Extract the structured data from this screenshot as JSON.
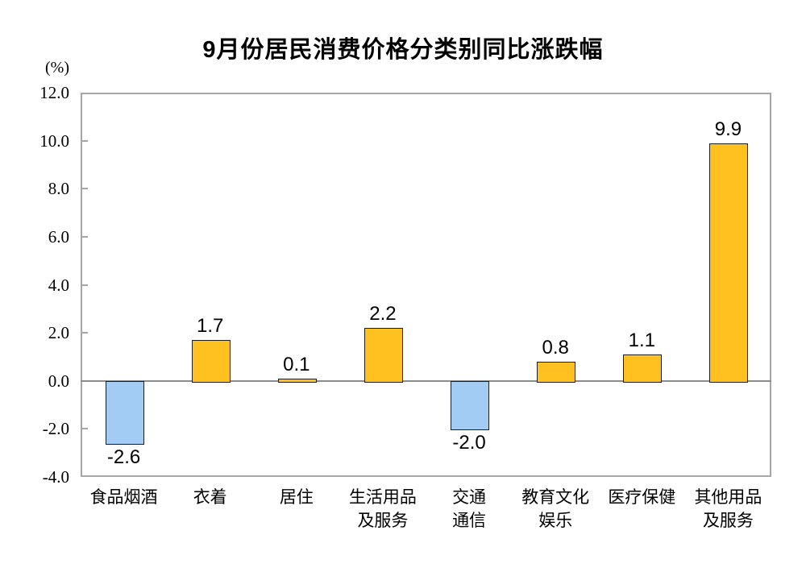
{
  "title": "9月份居民消费价格分类别同比涨跌幅",
  "unit_label": "(%)",
  "chart_data": {
    "type": "bar",
    "title": "9月份居民消费价格分类别同比涨跌幅",
    "unit": "(%)",
    "categories": [
      "食品烟酒",
      "衣着",
      "居住",
      "生活用品\n及服务",
      "交通\n通信",
      "教育文化\n娱乐",
      "医疗保健",
      "其他用品\n及服务"
    ],
    "values": [
      -2.6,
      1.7,
      0.1,
      2.2,
      -2.0,
      0.8,
      1.1,
      9.9
    ],
    "value_labels": [
      "-2.6",
      "1.7",
      "0.1",
      "2.2",
      "-2.0",
      "0.8",
      "1.1",
      "9.9"
    ],
    "xlabel": "",
    "ylabel": "(%)",
    "ylim": [
      -4.0,
      12.0
    ],
    "ytick_step": 2.0,
    "yticks": [
      "12.0",
      "10.0",
      "8.0",
      "6.0",
      "4.0",
      "2.0",
      "0.0",
      "-2.0",
      "-4.0"
    ],
    "grid": false,
    "legend": "none",
    "colors": {
      "positive": "#ffc120",
      "negative": "#a3ccf4",
      "bar_border": "#1e1e1e",
      "frame": "#a6a6a6",
      "zero_line": "#8c8c8c",
      "text": "#000000",
      "background": "#ffffff"
    }
  }
}
